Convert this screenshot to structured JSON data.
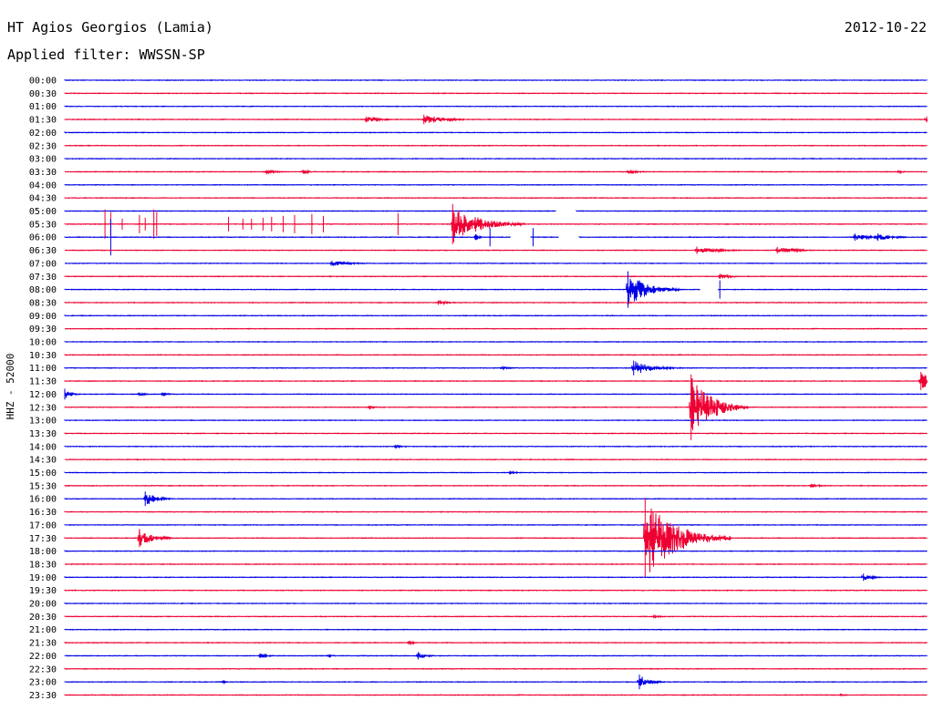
{
  "header": {
    "station": "HT Agios Georgios (Lamia)",
    "date": "2012-10-22",
    "filter": "Applied filter: WWSSN-SP",
    "channel": "HHZ - 52000"
  },
  "colors": {
    "odd_trace": "#0000e6",
    "even_trace": "#ee0033",
    "text": "#000000",
    "background": "#ffffff"
  },
  "chart_data": {
    "type": "line",
    "title": "HT Agios Georgios (Lamia)",
    "subtitle": "Applied filter: WWSSN-SP",
    "ylabel": "HHZ - 52000",
    "xlabel": "",
    "x_range_minutes": [
      0,
      30
    ],
    "grid": false,
    "legend": "none",
    "row_labels": [
      "00:00",
      "00:30",
      "01:00",
      "01:30",
      "02:00",
      "02:30",
      "03:00",
      "03:30",
      "04:00",
      "04:30",
      "05:00",
      "05:30",
      "06:00",
      "06:30",
      "07:00",
      "07:30",
      "08:00",
      "08:30",
      "09:00",
      "09:30",
      "10:00",
      "10:30",
      "11:00",
      "11:30",
      "12:00",
      "12:30",
      "13:00",
      "13:30",
      "14:00",
      "14:30",
      "15:00",
      "15:30",
      "16:00",
      "16:30",
      "17:00",
      "17:30",
      "18:00",
      "18:30",
      "19:00",
      "19:30",
      "20:00",
      "20:30",
      "21:00",
      "21:30",
      "22:00",
      "22:30",
      "23:00",
      "23:30"
    ],
    "trace_colors": [
      "#0000e6",
      "#ee0033"
    ],
    "events": [
      {
        "row": 3,
        "minute": 10.5,
        "amplitude": 0.8,
        "duration": 1.3
      },
      {
        "row": 3,
        "minute": 12.5,
        "amplitude": 1.3,
        "duration": 2.2
      },
      {
        "row": 3,
        "minute": 30.0,
        "amplitude": 0.8,
        "duration": 0.6
      },
      {
        "row": 7,
        "minute": 7.0,
        "amplitude": 0.4,
        "duration": 1.5
      },
      {
        "row": 7,
        "minute": 8.3,
        "amplitude": 0.5,
        "duration": 0.8
      },
      {
        "row": 7,
        "minute": 19.6,
        "amplitude": 0.4,
        "duration": 1.5
      },
      {
        "row": 7,
        "minute": 29.0,
        "amplitude": 0.4,
        "duration": 0.5
      },
      {
        "row": 11,
        "minute": 13.5,
        "amplitude": 5.5,
        "duration": 2.5
      },
      {
        "row": 12,
        "minute": 14.3,
        "amplitude": 0.8,
        "duration": 0.4
      },
      {
        "row": 12,
        "minute": 27.5,
        "amplitude": 1.0,
        "duration": 1.5
      },
      {
        "row": 12,
        "minute": 28.3,
        "amplitude": 1.0,
        "duration": 1.3
      },
      {
        "row": 13,
        "minute": 22.0,
        "amplitude": 1.0,
        "duration": 2.0
      },
      {
        "row": 13,
        "minute": 24.8,
        "amplitude": 0.9,
        "duration": 1.8
      },
      {
        "row": 14,
        "minute": 9.3,
        "amplitude": 0.7,
        "duration": 2.0
      },
      {
        "row": 15,
        "minute": 22.8,
        "amplitude": 0.7,
        "duration": 1.0
      },
      {
        "row": 16,
        "minute": 19.6,
        "amplitude": 5.0,
        "duration": 1.8
      },
      {
        "row": 17,
        "minute": 13.0,
        "amplitude": 0.6,
        "duration": 1.0
      },
      {
        "row": 22,
        "minute": 19.8,
        "amplitude": 2.0,
        "duration": 1.8
      },
      {
        "row": 22,
        "minute": 15.2,
        "amplitude": 0.3,
        "duration": 1.5
      },
      {
        "row": 23,
        "minute": 29.8,
        "amplitude": 2.5,
        "duration": 1.5
      },
      {
        "row": 24,
        "minute": 0.0,
        "amplitude": 1.5,
        "duration": 0.6
      },
      {
        "row": 24,
        "minute": 2.6,
        "amplitude": 0.5,
        "duration": 0.6
      },
      {
        "row": 24,
        "minute": 3.4,
        "amplitude": 0.5,
        "duration": 0.6
      },
      {
        "row": 25,
        "minute": 21.8,
        "amplitude": 9.0,
        "duration": 2.0
      },
      {
        "row": 25,
        "minute": 10.6,
        "amplitude": 0.4,
        "duration": 0.6
      },
      {
        "row": 28,
        "minute": 11.5,
        "amplitude": 0.5,
        "duration": 0.7
      },
      {
        "row": 30,
        "minute": 15.5,
        "amplitude": 0.5,
        "duration": 0.6
      },
      {
        "row": 31,
        "minute": 26.0,
        "amplitude": 0.5,
        "duration": 1.0
      },
      {
        "row": 32,
        "minute": 2.8,
        "amplitude": 2.0,
        "duration": 1.0
      },
      {
        "row": 35,
        "minute": 2.6,
        "amplitude": 2.5,
        "duration": 1.2
      },
      {
        "row": 35,
        "minute": 20.2,
        "amplitude": 11.0,
        "duration": 3.0
      },
      {
        "row": 38,
        "minute": 27.8,
        "amplitude": 1.0,
        "duration": 0.8
      },
      {
        "row": 41,
        "minute": 20.5,
        "amplitude": 0.5,
        "duration": 0.6
      },
      {
        "row": 43,
        "minute": 12.0,
        "amplitude": 0.5,
        "duration": 0.6
      },
      {
        "row": 44,
        "minute": 6.8,
        "amplitude": 0.6,
        "duration": 0.8
      },
      {
        "row": 44,
        "minute": 9.2,
        "amplitude": 0.4,
        "duration": 0.5
      },
      {
        "row": 44,
        "minute": 12.3,
        "amplitude": 1.0,
        "duration": 0.8
      },
      {
        "row": 46,
        "minute": 20.0,
        "amplitude": 2.0,
        "duration": 0.9
      },
      {
        "row": 46,
        "minute": 5.5,
        "amplitude": 0.3,
        "duration": 0.6
      },
      {
        "row": 47,
        "minute": 27.0,
        "amplitude": 0.3,
        "duration": 0.6
      }
    ],
    "spikes": [
      {
        "row": 11,
        "minute": 1.4,
        "amplitude": 1.6
      },
      {
        "row": 11,
        "minute": 1.6,
        "amplitude": 1.3
      },
      {
        "row": 11,
        "minute": 2.0,
        "amplitude": 0.6
      },
      {
        "row": 11,
        "minute": 2.6,
        "amplitude": 1.0
      },
      {
        "row": 11,
        "minute": 2.8,
        "amplitude": 0.7
      },
      {
        "row": 11,
        "minute": 3.1,
        "amplitude": 1.6
      },
      {
        "row": 11,
        "minute": 3.2,
        "amplitude": 1.3
      },
      {
        "row": 11,
        "minute": 5.7,
        "amplitude": 0.8
      },
      {
        "row": 11,
        "minute": 6.2,
        "amplitude": 0.6
      },
      {
        "row": 11,
        "minute": 6.5,
        "amplitude": 0.6
      },
      {
        "row": 11,
        "minute": 6.9,
        "amplitude": 0.7
      },
      {
        "row": 11,
        "minute": 7.2,
        "amplitude": 0.8
      },
      {
        "row": 11,
        "minute": 7.6,
        "amplitude": 0.9
      },
      {
        "row": 11,
        "minute": 8.0,
        "amplitude": 1.0
      },
      {
        "row": 11,
        "minute": 8.6,
        "amplitude": 1.1
      },
      {
        "row": 11,
        "minute": 9.0,
        "amplitude": 0.9
      },
      {
        "row": 11,
        "minute": 11.6,
        "amplitude": 1.2
      },
      {
        "row": 12,
        "minute": 1.6,
        "amplitude": 2.0
      },
      {
        "row": 12,
        "minute": 14.8,
        "amplitude": 1.0
      },
      {
        "row": 12,
        "minute": 16.3,
        "amplitude": 1.0
      },
      {
        "row": 16,
        "minute": 22.8,
        "amplitude": 1.0
      }
    ],
    "gaps": [
      {
        "row": 10,
        "start": 17.1,
        "end": 17.8
      },
      {
        "row": 12,
        "start": 15.5,
        "end": 16.2
      },
      {
        "row": 12,
        "start": 17.2,
        "end": 17.9
      },
      {
        "row": 16,
        "start": 22.1,
        "end": 22.7
      }
    ]
  }
}
